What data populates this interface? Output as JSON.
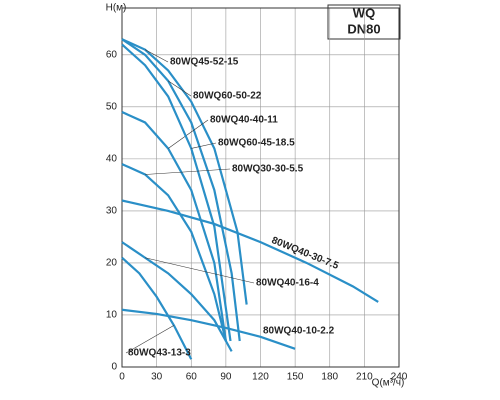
{
  "chart_data": {
    "type": "line",
    "xlabel": "Q(м³/ч)",
    "ylabel": "H(м)",
    "annotation": [
      "WQ",
      "DN80"
    ],
    "xlim": [
      0,
      240
    ],
    "ylim": [
      0,
      69
    ],
    "xticks": [
      0,
      30,
      60,
      90,
      120,
      150,
      180,
      210,
      240
    ],
    "yticks": [
      0,
      10,
      20,
      30,
      40,
      50,
      60
    ],
    "grid": true,
    "series": [
      {
        "name": "80WQ45-52-15",
        "color": "#2a8fc7",
        "x": [
          0,
          20,
          40,
          60,
          80,
          100,
          108
        ],
        "values": [
          63,
          61,
          57,
          51,
          42,
          26,
          12
        ]
      },
      {
        "name": "80WQ60-50-22",
        "color": "#2a8fc7",
        "x": [
          0,
          20,
          40,
          60,
          80,
          95,
          102
        ],
        "values": [
          63,
          60,
          55,
          47,
          34,
          18,
          5
        ]
      },
      {
        "name": "80WQ40-40-11",
        "color": "#2a8fc7",
        "x": [
          0,
          20,
          40,
          60,
          80,
          90
        ],
        "values": [
          49,
          47,
          42,
          34,
          20,
          5
        ]
      },
      {
        "name": "80WQ60-45-18.5",
        "color": "#2a8fc7",
        "x": [
          0,
          20,
          40,
          60,
          80,
          94
        ],
        "values": [
          62,
          58,
          52,
          42,
          27,
          5
        ]
      },
      {
        "name": "80WQ30-30-5.5",
        "color": "#2a8fc7",
        "x": [
          0,
          20,
          40,
          60,
          80,
          90
        ],
        "values": [
          39,
          37,
          33,
          26,
          14,
          5
        ]
      },
      {
        "name": "80WQ40-30-7.5",
        "color": "#2a8fc7",
        "x": [
          0,
          40,
          80,
          120,
          160,
          200,
          222
        ],
        "values": [
          32,
          30,
          27.5,
          24,
          20,
          15.5,
          12.5
        ]
      },
      {
        "name": "80WQ40-16-4",
        "color": "#2a8fc7",
        "x": [
          0,
          20,
          40,
          60,
          80,
          95
        ],
        "values": [
          24,
          21,
          18,
          14,
          9,
          3
        ]
      },
      {
        "name": "80WQ40-10-2.2",
        "color": "#2a8fc7",
        "x": [
          0,
          30,
          60,
          90,
          120,
          150
        ],
        "values": [
          11,
          10.2,
          9,
          7.5,
          5.8,
          3.5
        ]
      },
      {
        "name": "80WQ43-13-3",
        "color": "#2a8fc7",
        "x": [
          0,
          15,
          30,
          45,
          60
        ],
        "values": [
          21,
          18,
          13.5,
          8,
          1.5
        ]
      }
    ]
  }
}
